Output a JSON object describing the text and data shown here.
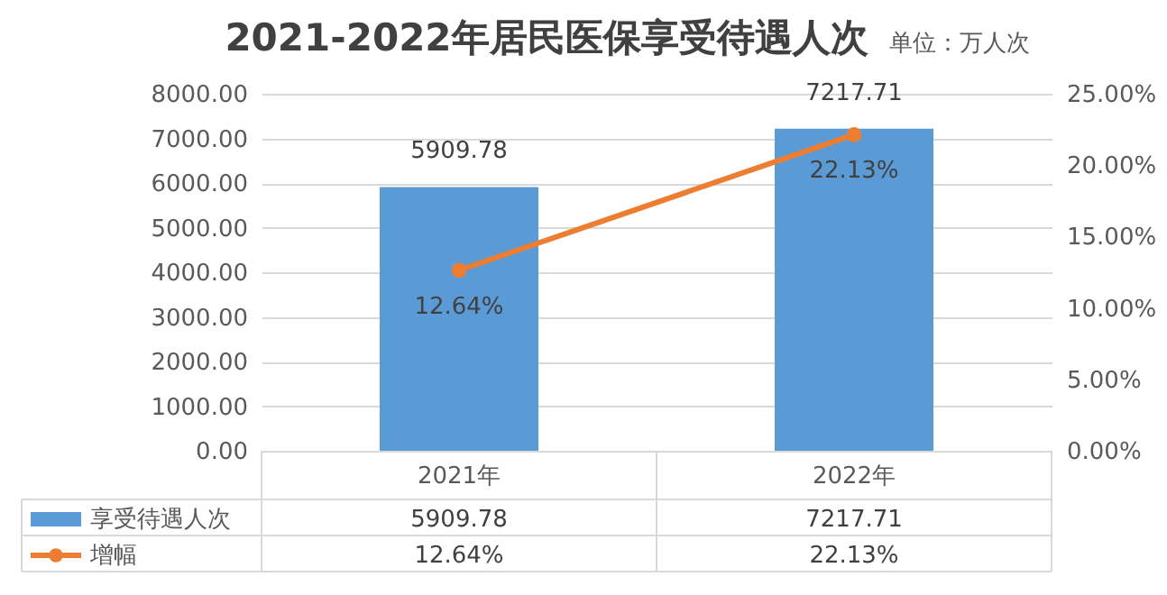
{
  "chart_data": {
    "type": "bar",
    "title": "2021-2022年居民医保享受待遇人次",
    "subtitle": "单位：万人次",
    "categories": [
      "2021年",
      "2022年"
    ],
    "series": [
      {
        "name": "享受待遇人次",
        "type": "bar",
        "color": "#5b9bd5",
        "values": [
          5909.78,
          7217.71
        ],
        "value_labels": [
          "5909.78",
          "7217.71"
        ]
      },
      {
        "name": "增幅",
        "type": "line",
        "axis": "y2",
        "color": "#ed7d31",
        "marker": "circle",
        "values": [
          12.64,
          22.13
        ],
        "value_labels": [
          "12.64%",
          "22.13%"
        ]
      }
    ],
    "ylim": [
      0,
      8000
    ],
    "yticks": [
      {
        "value": 0,
        "label": "0.00"
      },
      {
        "value": 1000,
        "label": "1000.00"
      },
      {
        "value": 2000,
        "label": "2000.00"
      },
      {
        "value": 3000,
        "label": "3000.00"
      },
      {
        "value": 4000,
        "label": "4000.00"
      },
      {
        "value": 5000,
        "label": "5000.00"
      },
      {
        "value": 6000,
        "label": "6000.00"
      },
      {
        "value": 7000,
        "label": "7000.00"
      },
      {
        "value": 8000,
        "label": "8000.00"
      }
    ],
    "y2lim": [
      0,
      25
    ],
    "y2ticks": [
      {
        "value": 0,
        "label": "0.00%"
      },
      {
        "value": 5,
        "label": "5.00%"
      },
      {
        "value": 10,
        "label": "10.00%"
      },
      {
        "value": 15,
        "label": "15.00%"
      },
      {
        "value": 20,
        "label": "20.00%"
      },
      {
        "value": 25,
        "label": "25.00%"
      }
    ],
    "grid": "y",
    "legend": "bottom"
  }
}
